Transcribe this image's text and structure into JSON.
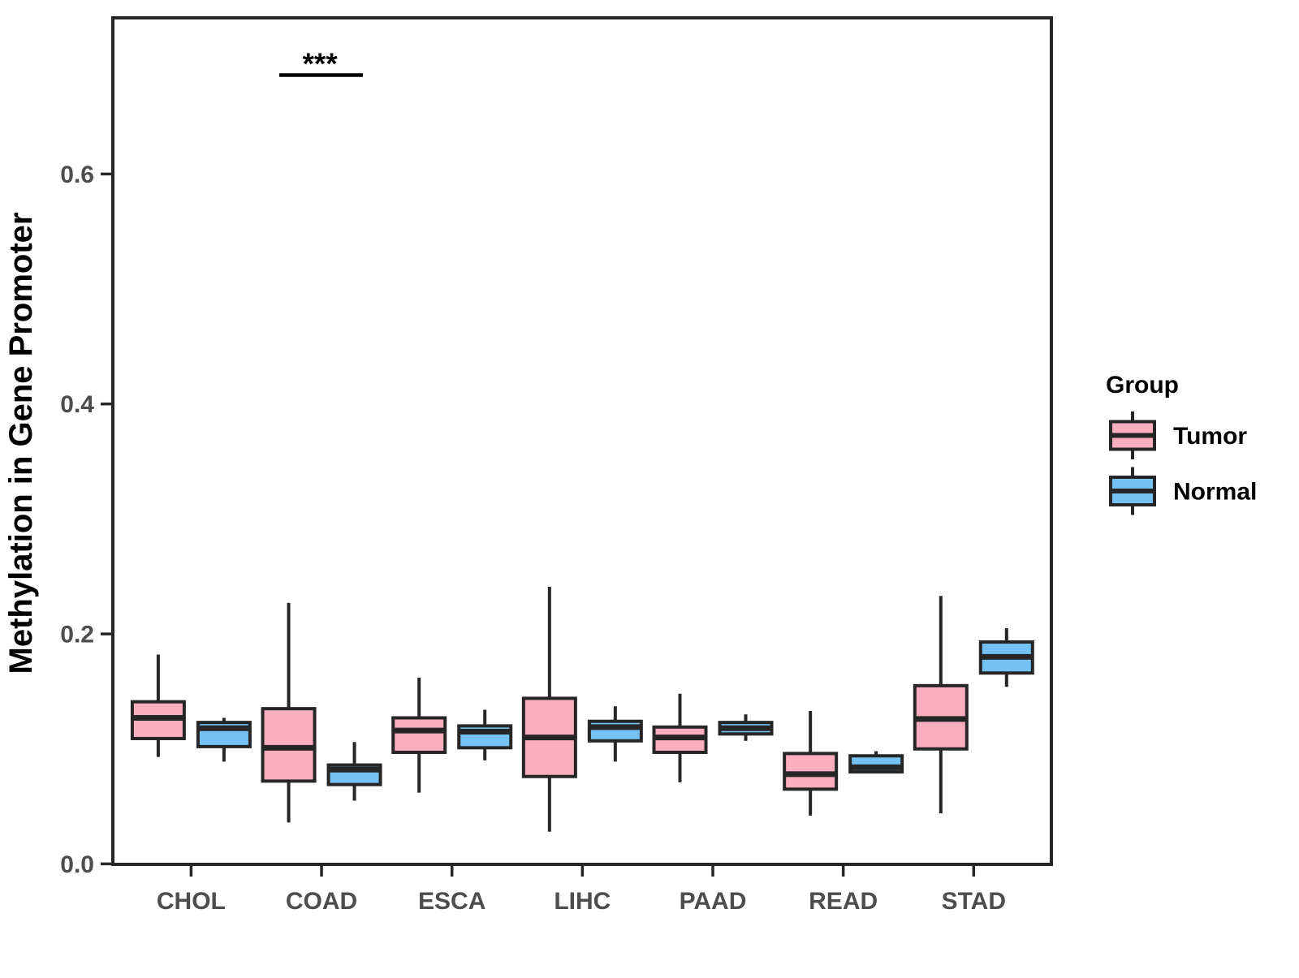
{
  "figure": {
    "background": "#ffffff",
    "panel_border_color": "#262626",
    "axis_text_color": "#4d4d4d"
  },
  "chart_data": {
    "type": "boxplot",
    "title": "",
    "xlabel": "",
    "ylabel": "Methylation in Gene Promoter",
    "ylim": [
      0,
      0.736
    ],
    "grid": false,
    "yticks": {
      "values": [
        0,
        0.2,
        0.4,
        0.6
      ],
      "labels": [
        "0.0",
        "0.2",
        "0.4",
        "0.6"
      ]
    },
    "categories": [
      "CHOL",
      "COAD",
      "ESCA",
      "LIHC",
      "PAAD",
      "READ",
      "STAD"
    ],
    "legend": {
      "title": "Group",
      "position": "right",
      "entries": [
        {
          "label": "Tumor",
          "color": "#FCAEC1"
        },
        {
          "label": "Normal",
          "color": "#74C1F4"
        }
      ]
    },
    "stroke_color": "#262626",
    "significance": [
      {
        "category": "COAD",
        "label": "***"
      }
    ],
    "series": [
      {
        "name": "Tumor",
        "color": "#FCAEC1",
        "boxes": [
          {
            "category": "CHOL",
            "min": 0.093,
            "q1": 0.109,
            "median": 0.127,
            "q3": 0.141,
            "max": 0.182
          },
          {
            "category": "COAD",
            "min": 0.036,
            "q1": 0.072,
            "median": 0.101,
            "q3": 0.135,
            "max": 0.227
          },
          {
            "category": "ESCA",
            "min": 0.062,
            "q1": 0.097,
            "median": 0.116,
            "q3": 0.127,
            "max": 0.162
          },
          {
            "category": "LIHC",
            "min": 0.028,
            "q1": 0.076,
            "median": 0.11,
            "q3": 0.144,
            "max": 0.241
          },
          {
            "category": "PAAD",
            "min": 0.071,
            "q1": 0.097,
            "median": 0.11,
            "q3": 0.119,
            "max": 0.148
          },
          {
            "category": "READ",
            "min": 0.042,
            "q1": 0.065,
            "median": 0.078,
            "q3": 0.096,
            "max": 0.133
          },
          {
            "category": "STAD",
            "min": 0.044,
            "q1": 0.1,
            "median": 0.126,
            "q3": 0.155,
            "max": 0.233
          }
        ]
      },
      {
        "name": "Normal",
        "color": "#74C1F4",
        "boxes": [
          {
            "category": "CHOL",
            "min": 0.089,
            "q1": 0.102,
            "median": 0.118,
            "q3": 0.123,
            "max": 0.127
          },
          {
            "category": "COAD",
            "min": 0.055,
            "q1": 0.069,
            "median": 0.082,
            "q3": 0.086,
            "max": 0.106
          },
          {
            "category": "ESCA",
            "min": 0.09,
            "q1": 0.101,
            "median": 0.115,
            "q3": 0.12,
            "max": 0.134
          },
          {
            "category": "LIHC",
            "min": 0.089,
            "q1": 0.107,
            "median": 0.119,
            "q3": 0.124,
            "max": 0.137
          },
          {
            "category": "PAAD",
            "min": 0.107,
            "q1": 0.113,
            "median": 0.118,
            "q3": 0.123,
            "max": 0.13
          },
          {
            "category": "READ",
            "min": 0.079,
            "q1": 0.08,
            "median": 0.084,
            "q3": 0.094,
            "max": 0.098
          },
          {
            "category": "STAD",
            "min": 0.154,
            "q1": 0.166,
            "median": 0.18,
            "q3": 0.193,
            "max": 0.205
          }
        ]
      }
    ]
  }
}
